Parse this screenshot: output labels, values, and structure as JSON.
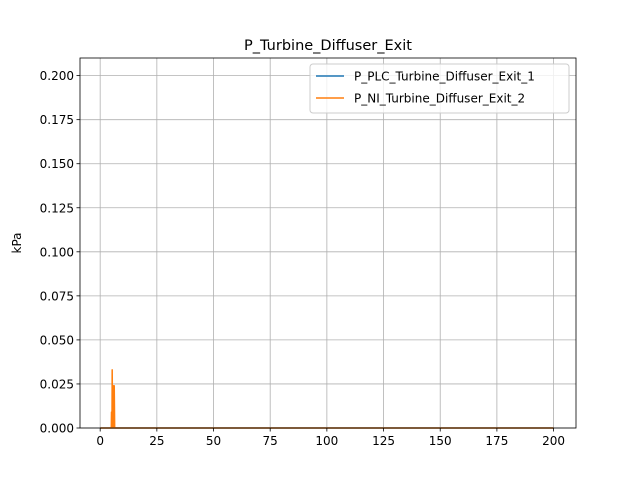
{
  "chart_data": {
    "type": "line",
    "title": "P_Turbine_Diffuser_Exit",
    "xlabel": "",
    "ylabel": "kPa",
    "xlim": [
      -8.9,
      209.9
    ],
    "ylim": [
      0.0,
      0.21
    ],
    "x_ticks": [
      0,
      25,
      50,
      75,
      100,
      125,
      150,
      175,
      200
    ],
    "y_ticks": [
      0.0,
      0.025,
      0.05,
      0.075,
      0.1,
      0.125,
      0.15,
      0.175,
      0.2
    ],
    "x_tick_labels": [
      "0",
      "25",
      "50",
      "75",
      "100",
      "125",
      "150",
      "175",
      "200"
    ],
    "y_tick_labels": [
      "0.000",
      "0.025",
      "0.050",
      "0.075",
      "0.100",
      "0.125",
      "0.150",
      "0.175",
      "0.200"
    ],
    "grid": true,
    "legend_position": "upper right",
    "series": [
      {
        "name": "P_PLC_Turbine_Diffuser_Exit_1",
        "color": "#1f77b4",
        "x": [
          0,
          200
        ],
        "y": [
          0.0,
          0.0
        ]
      },
      {
        "name": "P_NI_Turbine_Diffuser_Exit_2",
        "color": "#ff7f0e",
        "x": [
          0,
          4.9,
          5.0,
          5.2,
          5.3,
          5.5,
          5.6,
          5.8,
          5.9,
          6.1,
          6.2,
          6.4,
          6.5,
          200
        ],
        "y": [
          0.0,
          0.0,
          0.009,
          0.0,
          0.033,
          0.0,
          0.024,
          0.0,
          0.024,
          0.0,
          0.024,
          0.0,
          0.0,
          0.0
        ]
      }
    ]
  }
}
